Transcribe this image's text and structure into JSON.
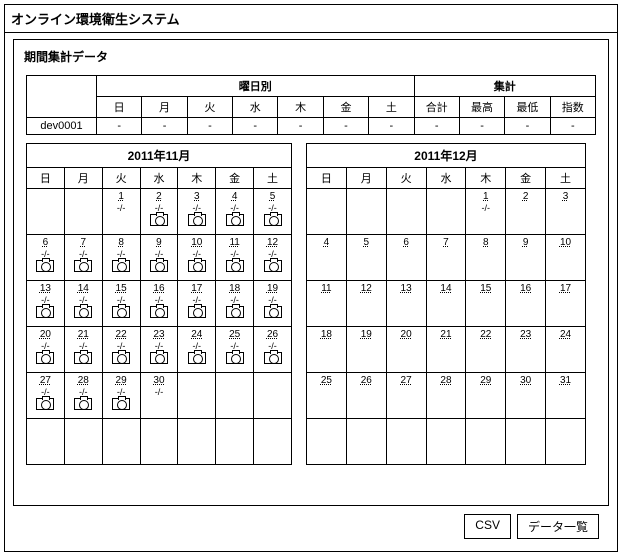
{
  "title": "オンライン環境衛生システム",
  "section_title": "期間集計データ",
  "summary": {
    "group_day_label": "曜日別",
    "group_agg_label": "集計",
    "days": [
      "日",
      "月",
      "火",
      "水",
      "木",
      "金",
      "土"
    ],
    "agg_cols": [
      "合計",
      "最高",
      "最低",
      "指数"
    ],
    "device": "dev0001",
    "day_vals": [
      "-",
      "-",
      "-",
      "-",
      "-",
      "-",
      "-"
    ],
    "agg_vals": [
      "-",
      "-",
      "-",
      "-"
    ]
  },
  "cal_left": {
    "month_label": "2011年11月",
    "dow": [
      "日",
      "月",
      "火",
      "水",
      "木",
      "金",
      "土"
    ],
    "cells": [
      [
        {
          "d": ""
        },
        {
          "d": ""
        },
        {
          "d": "1",
          "v": "-/-",
          "cam": false
        },
        {
          "d": "2",
          "v": "-/-",
          "cam": true
        },
        {
          "d": "3",
          "v": "-/-",
          "cam": true
        },
        {
          "d": "4",
          "v": "-/-",
          "cam": true
        },
        {
          "d": "5",
          "v": "-/-",
          "cam": true
        }
      ],
      [
        {
          "d": "6",
          "v": "-/-",
          "cam": true
        },
        {
          "d": "7",
          "v": "-/-",
          "cam": true
        },
        {
          "d": "8",
          "v": "-/-",
          "cam": true
        },
        {
          "d": "9",
          "v": "-/-",
          "cam": true
        },
        {
          "d": "10",
          "v": "-/-",
          "cam": true
        },
        {
          "d": "11",
          "v": "-/-",
          "cam": true
        },
        {
          "d": "12",
          "v": "-/-",
          "cam": true
        }
      ],
      [
        {
          "d": "13",
          "v": "-/-",
          "cam": true
        },
        {
          "d": "14",
          "v": "-/-",
          "cam": true
        },
        {
          "d": "15",
          "v": "-/-",
          "cam": true
        },
        {
          "d": "16",
          "v": "-/-",
          "cam": true
        },
        {
          "d": "17",
          "v": "-/-",
          "cam": true
        },
        {
          "d": "18",
          "v": "-/-",
          "cam": true
        },
        {
          "d": "19",
          "v": "-/-",
          "cam": true
        }
      ],
      [
        {
          "d": "20",
          "v": "-/-",
          "cam": true
        },
        {
          "d": "21",
          "v": "-/-",
          "cam": true
        },
        {
          "d": "22",
          "v": "-/-",
          "cam": true
        },
        {
          "d": "23",
          "v": "-/-",
          "cam": true
        },
        {
          "d": "24",
          "v": "-/-",
          "cam": true
        },
        {
          "d": "25",
          "v": "-/-",
          "cam": true
        },
        {
          "d": "26",
          "v": "-/-",
          "cam": true
        }
      ],
      [
        {
          "d": "27",
          "v": "-/-",
          "cam": true
        },
        {
          "d": "28",
          "v": "-/-",
          "cam": true
        },
        {
          "d": "29",
          "v": "-/-",
          "cam": true
        },
        {
          "d": "30",
          "v": "-/-",
          "cam": false
        },
        {
          "d": ""
        },
        {
          "d": ""
        },
        {
          "d": ""
        }
      ],
      [
        {
          "d": ""
        },
        {
          "d": ""
        },
        {
          "d": ""
        },
        {
          "d": ""
        },
        {
          "d": ""
        },
        {
          "d": ""
        },
        {
          "d": ""
        }
      ]
    ]
  },
  "cal_right": {
    "month_label": "2011年12月",
    "dow": [
      "日",
      "月",
      "火",
      "水",
      "木",
      "金",
      "土"
    ],
    "cells": [
      [
        {
          "d": ""
        },
        {
          "d": ""
        },
        {
          "d": ""
        },
        {
          "d": ""
        },
        {
          "d": "1",
          "v": "-/-"
        },
        {
          "d": "2"
        },
        {
          "d": "3"
        }
      ],
      [
        {
          "d": "4"
        },
        {
          "d": "5"
        },
        {
          "d": "6"
        },
        {
          "d": "7"
        },
        {
          "d": "8"
        },
        {
          "d": "9"
        },
        {
          "d": "10"
        }
      ],
      [
        {
          "d": "11"
        },
        {
          "d": "12"
        },
        {
          "d": "13"
        },
        {
          "d": "14"
        },
        {
          "d": "15"
        },
        {
          "d": "16"
        },
        {
          "d": "17"
        }
      ],
      [
        {
          "d": "18"
        },
        {
          "d": "19"
        },
        {
          "d": "20"
        },
        {
          "d": "21"
        },
        {
          "d": "22"
        },
        {
          "d": "23"
        },
        {
          "d": "24"
        }
      ],
      [
        {
          "d": "25"
        },
        {
          "d": "26"
        },
        {
          "d": "27"
        },
        {
          "d": "28"
        },
        {
          "d": "29"
        },
        {
          "d": "30"
        },
        {
          "d": "31"
        }
      ],
      [
        {
          "d": ""
        },
        {
          "d": ""
        },
        {
          "d": ""
        },
        {
          "d": ""
        },
        {
          "d": ""
        },
        {
          "d": ""
        },
        {
          "d": ""
        }
      ]
    ]
  },
  "buttons": {
    "csv": "CSV",
    "list": "データ一覧"
  }
}
